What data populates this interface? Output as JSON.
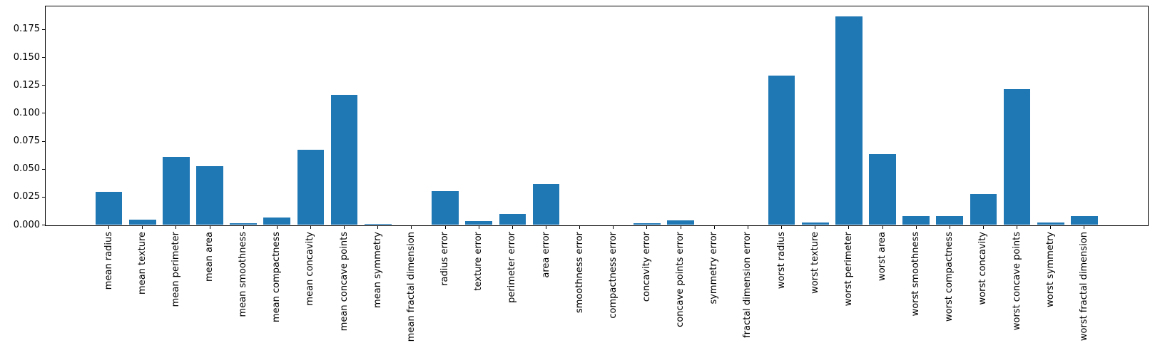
{
  "chart_data": {
    "type": "bar",
    "title": "",
    "xlabel": "",
    "ylabel": "",
    "legend": "none",
    "grid": false,
    "bar_color": "#1f77b4",
    "axis_color": "#000000",
    "text_color": "#000000",
    "bar_width": 0.8,
    "x_tick_label_rotation": 90,
    "xlim": [
      -1.89,
      30.89
    ],
    "ylim": [
      0,
      0.196
    ],
    "yticks": [
      0.0,
      0.025,
      0.05,
      0.075,
      0.1,
      0.125,
      0.15,
      0.175
    ],
    "ytick_labels": [
      "0.000",
      "0.025",
      "0.050",
      "0.075",
      "0.100",
      "0.125",
      "0.150",
      "0.175"
    ],
    "categories": [
      "mean radius",
      "mean texture",
      "mean perimeter",
      "mean area",
      "mean smoothness",
      "mean compactness",
      "mean concavity",
      "mean concave points",
      "mean symmetry",
      "mean fractal dimension",
      "radius error",
      "texture error",
      "perimeter error",
      "area error",
      "smoothness error",
      "compactness error",
      "concavity error",
      "concave points error",
      "symmetry error",
      "fractal dimension error",
      "worst radius",
      "worst texture",
      "worst perimeter",
      "worst area",
      "worst smoothness",
      "worst compactness",
      "worst concavity",
      "worst concave points",
      "worst symmetry",
      "worst fractal dimension"
    ],
    "values": [
      0.0295,
      0.0046,
      0.0611,
      0.0526,
      0.0014,
      0.0065,
      0.0675,
      0.1163,
      0.001,
      0.0003,
      0.0302,
      0.0033,
      0.0101,
      0.0368,
      0.0003,
      0.0004,
      0.0014,
      0.004,
      0.0003,
      0.0004,
      0.1335,
      0.0024,
      0.1866,
      0.0636,
      0.0078,
      0.0077,
      0.028,
      0.1219,
      0.0022,
      0.0078
    ]
  }
}
